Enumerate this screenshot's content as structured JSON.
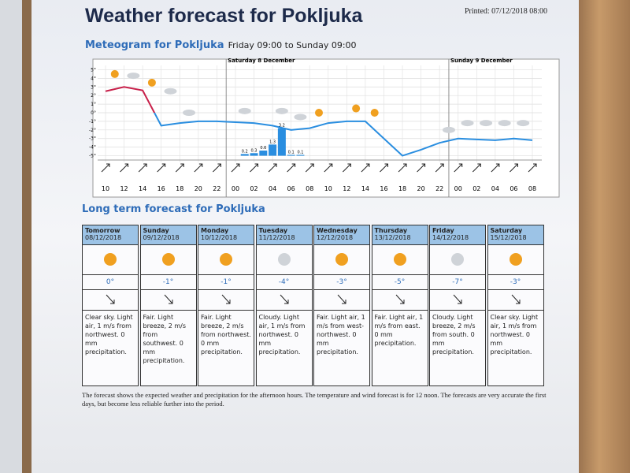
{
  "header": {
    "title": "Weather forecast for Pokljuka",
    "printed": "Printed: 07/12/2018 08:00"
  },
  "chart_data": {
    "type": "line",
    "title": "Meteogram for Pokljuka",
    "subtitle": "Friday 09:00 to Sunday 09:00",
    "day_labels": [
      "Saturday 8 December",
      "Sunday 9 December"
    ],
    "categories": [
      "10",
      "12",
      "14",
      "16",
      "18",
      "20",
      "22",
      "00",
      "02",
      "04",
      "06",
      "08",
      "10",
      "12",
      "14",
      "16",
      "18",
      "20",
      "22",
      "00",
      "02",
      "04",
      "06",
      "08"
    ],
    "series": [
      {
        "name": "Temperature",
        "color": "#2a8ee0",
        "values": [
          2.5,
          3,
          2.6,
          -1.5,
          -1.2,
          -1,
          -1,
          -1.1,
          -1.2,
          -1.5,
          -2,
          -1.8,
          -1.2,
          -1,
          -1,
          -3,
          -5,
          -4.3,
          -3.5,
          -3,
          -3.1,
          -3.2,
          -3,
          -3.2
        ]
      }
    ],
    "precipitation": {
      "color": "#2a8ee0",
      "values": [
        0.2,
        0.3,
        0.6,
        1.3,
        3.2,
        0.1,
        0.1
      ]
    },
    "ylim": [
      -5.5,
      5.5
    ],
    "yticks": [
      {
        "value": 5,
        "label": "5°"
      },
      {
        "value": 4,
        "label": "4°"
      },
      {
        "value": 3,
        "label": "3°"
      },
      {
        "value": 2,
        "label": "2°"
      },
      {
        "value": 1,
        "label": "1°"
      },
      {
        "value": 0,
        "label": "0°"
      },
      {
        "value": -1,
        "label": "-1°"
      },
      {
        "value": -2,
        "label": "-2°"
      },
      {
        "value": -3,
        "label": "-3°"
      },
      {
        "value": -4,
        "label": "-4°"
      },
      {
        "value": -5,
        "label": "-5°"
      }
    ],
    "grid": true
  },
  "long_term": {
    "title": "Long term forecast for Pokljuka",
    "days": [
      {
        "day": "Tomorrow",
        "date": "08/12/2018",
        "temp": "0°",
        "text": "Clear sky. Light air, 1 m/s from northwest. 0 mm precipitation."
      },
      {
        "day": "Sunday",
        "date": "09/12/2018",
        "temp": "-1°",
        "text": "Fair. Light breeze, 2 m/s from southwest. 0 mm precipitation."
      },
      {
        "day": "Monday",
        "date": "10/12/2018",
        "temp": "-1°",
        "text": "Fair. Light breeze, 2 m/s from northwest. 0 mm precipitation."
      },
      {
        "day": "Tuesday",
        "date": "11/12/2018",
        "temp": "-4°",
        "text": "Cloudy. Light air, 1 m/s from northwest. 0 mm precipitation."
      },
      {
        "day": "Wednesday",
        "date": "12/12/2018",
        "temp": "-3°",
        "text": "Fair. Light air, 1 m/s from west-northwest. 0 mm precipitation."
      },
      {
        "day": "Thursday",
        "date": "13/12/2018",
        "temp": "-5°",
        "text": "Fair. Light air, 1 m/s from east. 0 mm precipitation."
      },
      {
        "day": "Friday",
        "date": "14/12/2018",
        "temp": "-7°",
        "text": "Cloudy. Light breeze, 2 m/s from south. 0 mm precipitation."
      },
      {
        "day": "Saturday",
        "date": "15/12/2018",
        "temp": "-3°",
        "text": "Clear sky. Light air, 1 m/s from northwest. 0 mm precipitation."
      }
    ]
  },
  "footer": "The forecast shows the expected weather and precipitation for the afternoon hours. The temperature and wind forecast is for 12 noon. The forecasts are very accurate the first days, but become less reliable further into the period."
}
